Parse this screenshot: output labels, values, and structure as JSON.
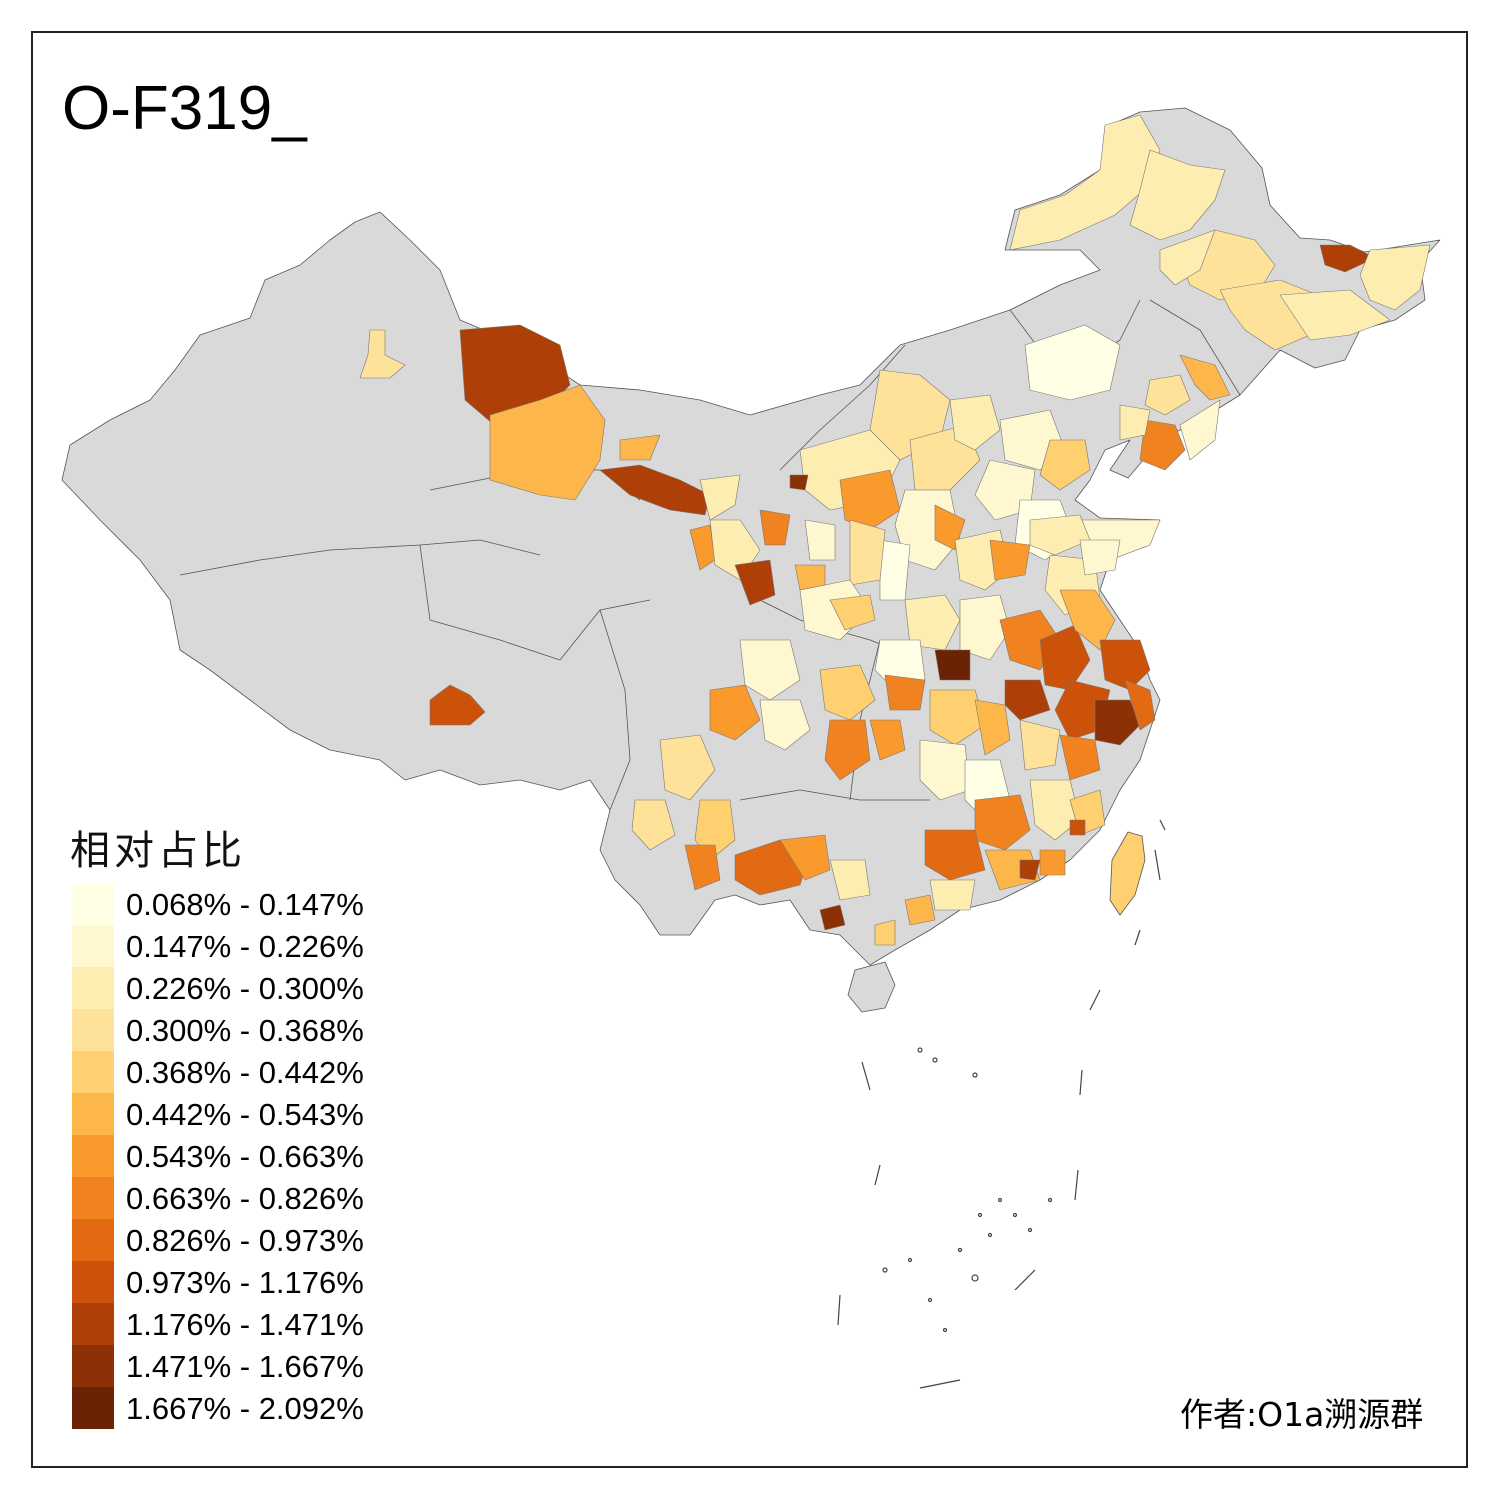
{
  "title": "O-F319_",
  "legend": {
    "title": "相对占比",
    "items": [
      {
        "label": "0.068% - 0.147%",
        "color": "#FFFFE5"
      },
      {
        "label": "0.147% - 0.226%",
        "color": "#FFF7CF"
      },
      {
        "label": "0.226% - 0.300%",
        "color": "#FEEDB1"
      },
      {
        "label": "0.300% - 0.368%",
        "color": "#FEE29A"
      },
      {
        "label": "0.368% - 0.442%",
        "color": "#FED070"
      },
      {
        "label": "0.442% - 0.543%",
        "color": "#FDB64A"
      },
      {
        "label": "0.543% - 0.663%",
        "color": "#FB9A2C"
      },
      {
        "label": "0.663% - 0.826%",
        "color": "#F0831F"
      },
      {
        "label": "0.826% - 0.973%",
        "color": "#E26A12"
      },
      {
        "label": "0.973% - 1.176%",
        "color": "#CC520A"
      },
      {
        "label": "1.176% - 1.471%",
        "color": "#AE4007"
      },
      {
        "label": "1.471% - 1.667%",
        "color": "#8C3105"
      },
      {
        "label": "1.667% - 2.092%",
        "color": "#6A2305"
      }
    ]
  },
  "credit": "作者:O1a溯源群",
  "colors": {
    "no_data": "#D9D9D9",
    "border": "#555555",
    "frame": "#222222"
  }
}
